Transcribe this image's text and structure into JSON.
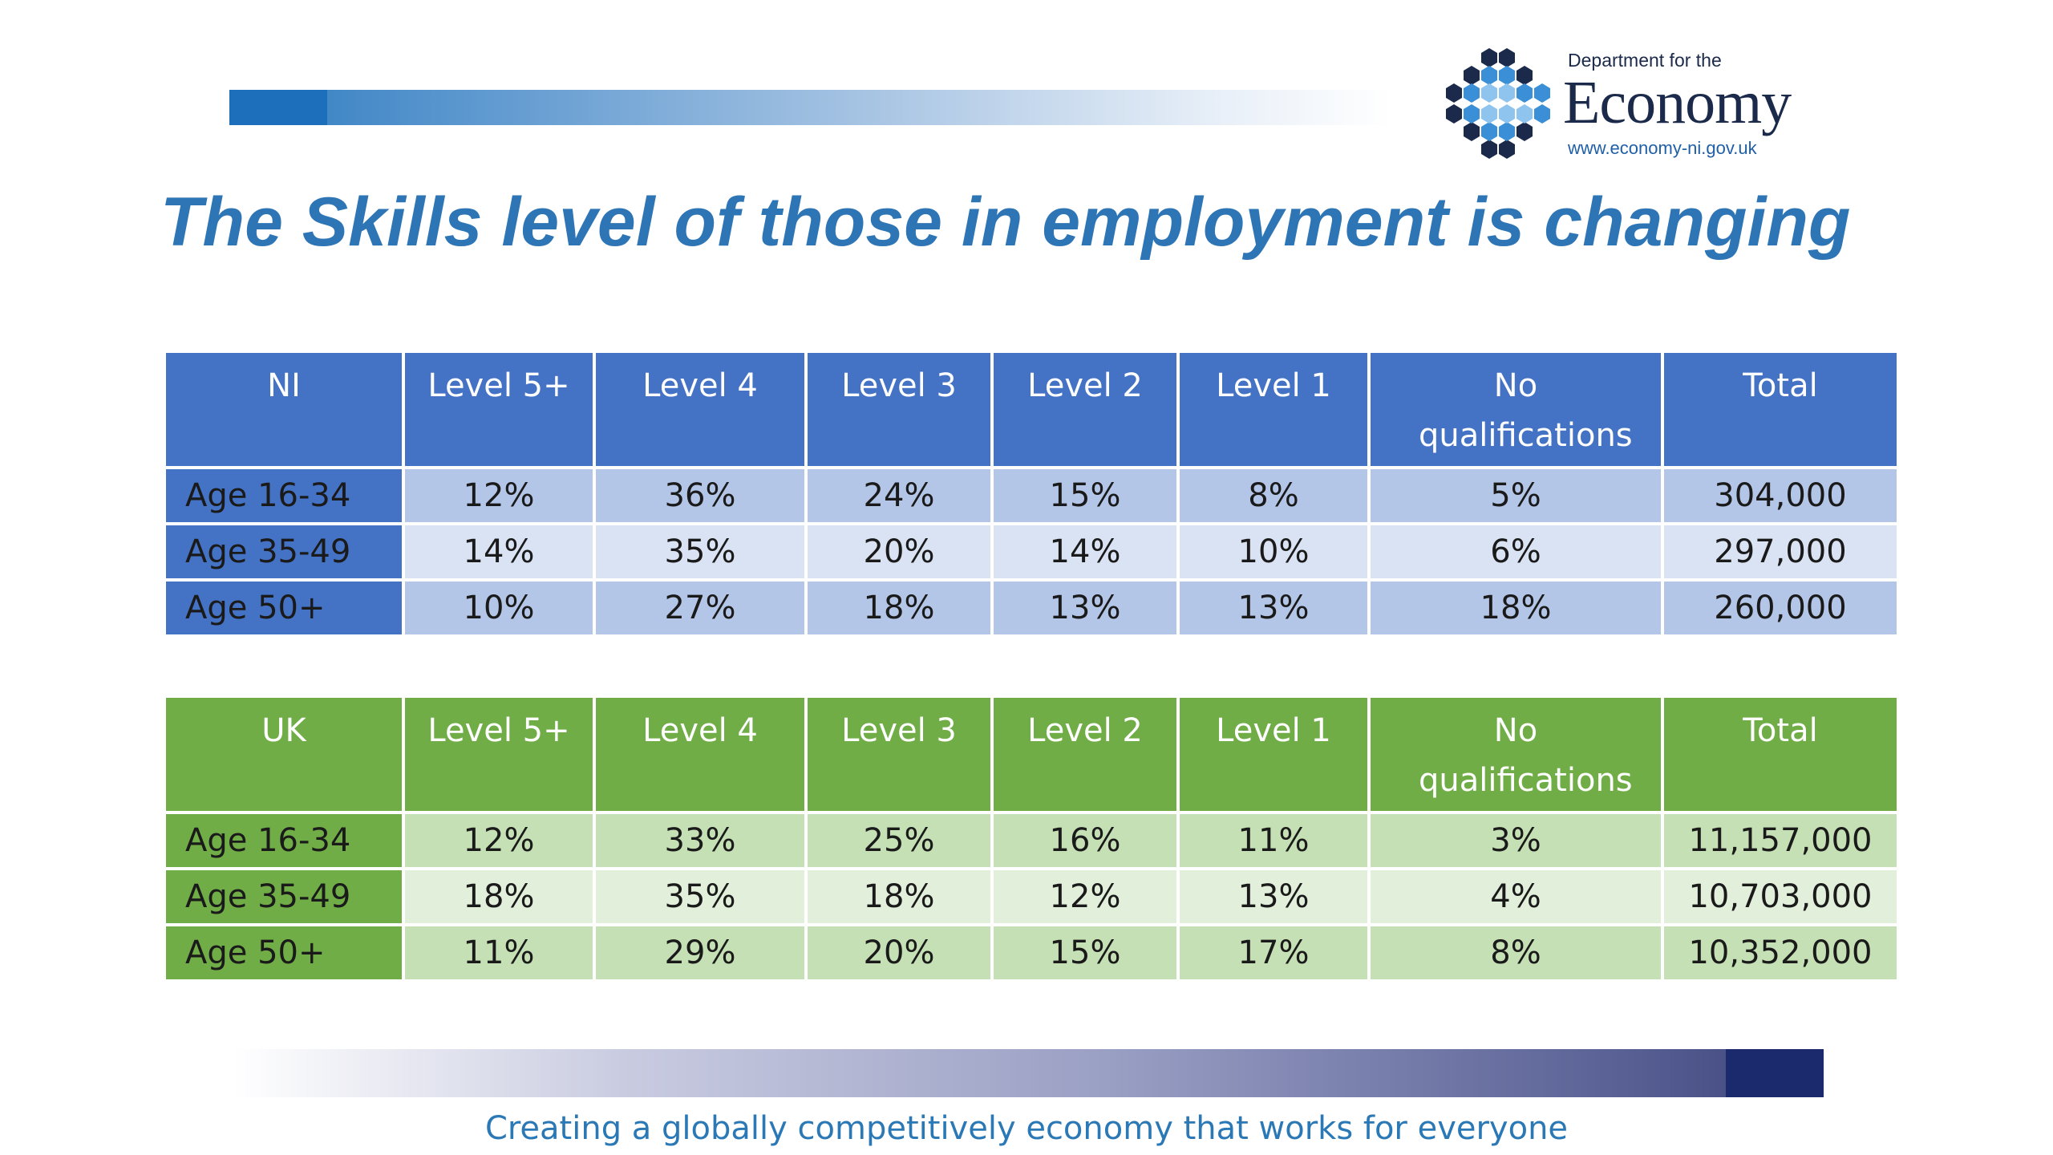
{
  "logo": {
    "department_text": "Department for the",
    "name_text": "Economy",
    "url_text": "www.economy-ni.gov.uk"
  },
  "title": "The Skills level of those in employment is changing",
  "ni_table": {
    "headers": [
      "NI",
      "Level 5+",
      "Level 4",
      "Level 3",
      "Level 2",
      "Level 1",
      "No qualifications",
      "Total"
    ],
    "rows": [
      [
        "Age 16-34",
        "12%",
        "36%",
        "24%",
        "15%",
        "8%",
        "5%",
        "304,000"
      ],
      [
        "Age 35-49",
        "14%",
        "35%",
        "20%",
        "14%",
        "10%",
        "6%",
        "297,000"
      ],
      [
        "Age 50+",
        "10%",
        "27%",
        "18%",
        "13%",
        "13%",
        "18%",
        "260,000"
      ]
    ]
  },
  "uk_table": {
    "headers": [
      "UK",
      "Level 5+",
      "Level 4",
      "Level 3",
      "Level 2",
      "Level 1",
      "No qualifications",
      "Total"
    ],
    "rows": [
      [
        "Age 16-34",
        "12%",
        "33%",
        "25%",
        "16%",
        "11%",
        "3%",
        "11,157,000"
      ],
      [
        "Age 35-49",
        "18%",
        "35%",
        "18%",
        "12%",
        "13%",
        "4%",
        "10,703,000"
      ],
      [
        "Age 50+",
        "11%",
        "29%",
        "20%",
        "15%",
        "17%",
        "8%",
        "10,352,000"
      ]
    ]
  },
  "tagline": "Creating a globally competitively economy that works for everyone",
  "colors": {
    "title": "#2e75b6",
    "ni_header": "#4472c4",
    "uk_header": "#70ad47"
  }
}
